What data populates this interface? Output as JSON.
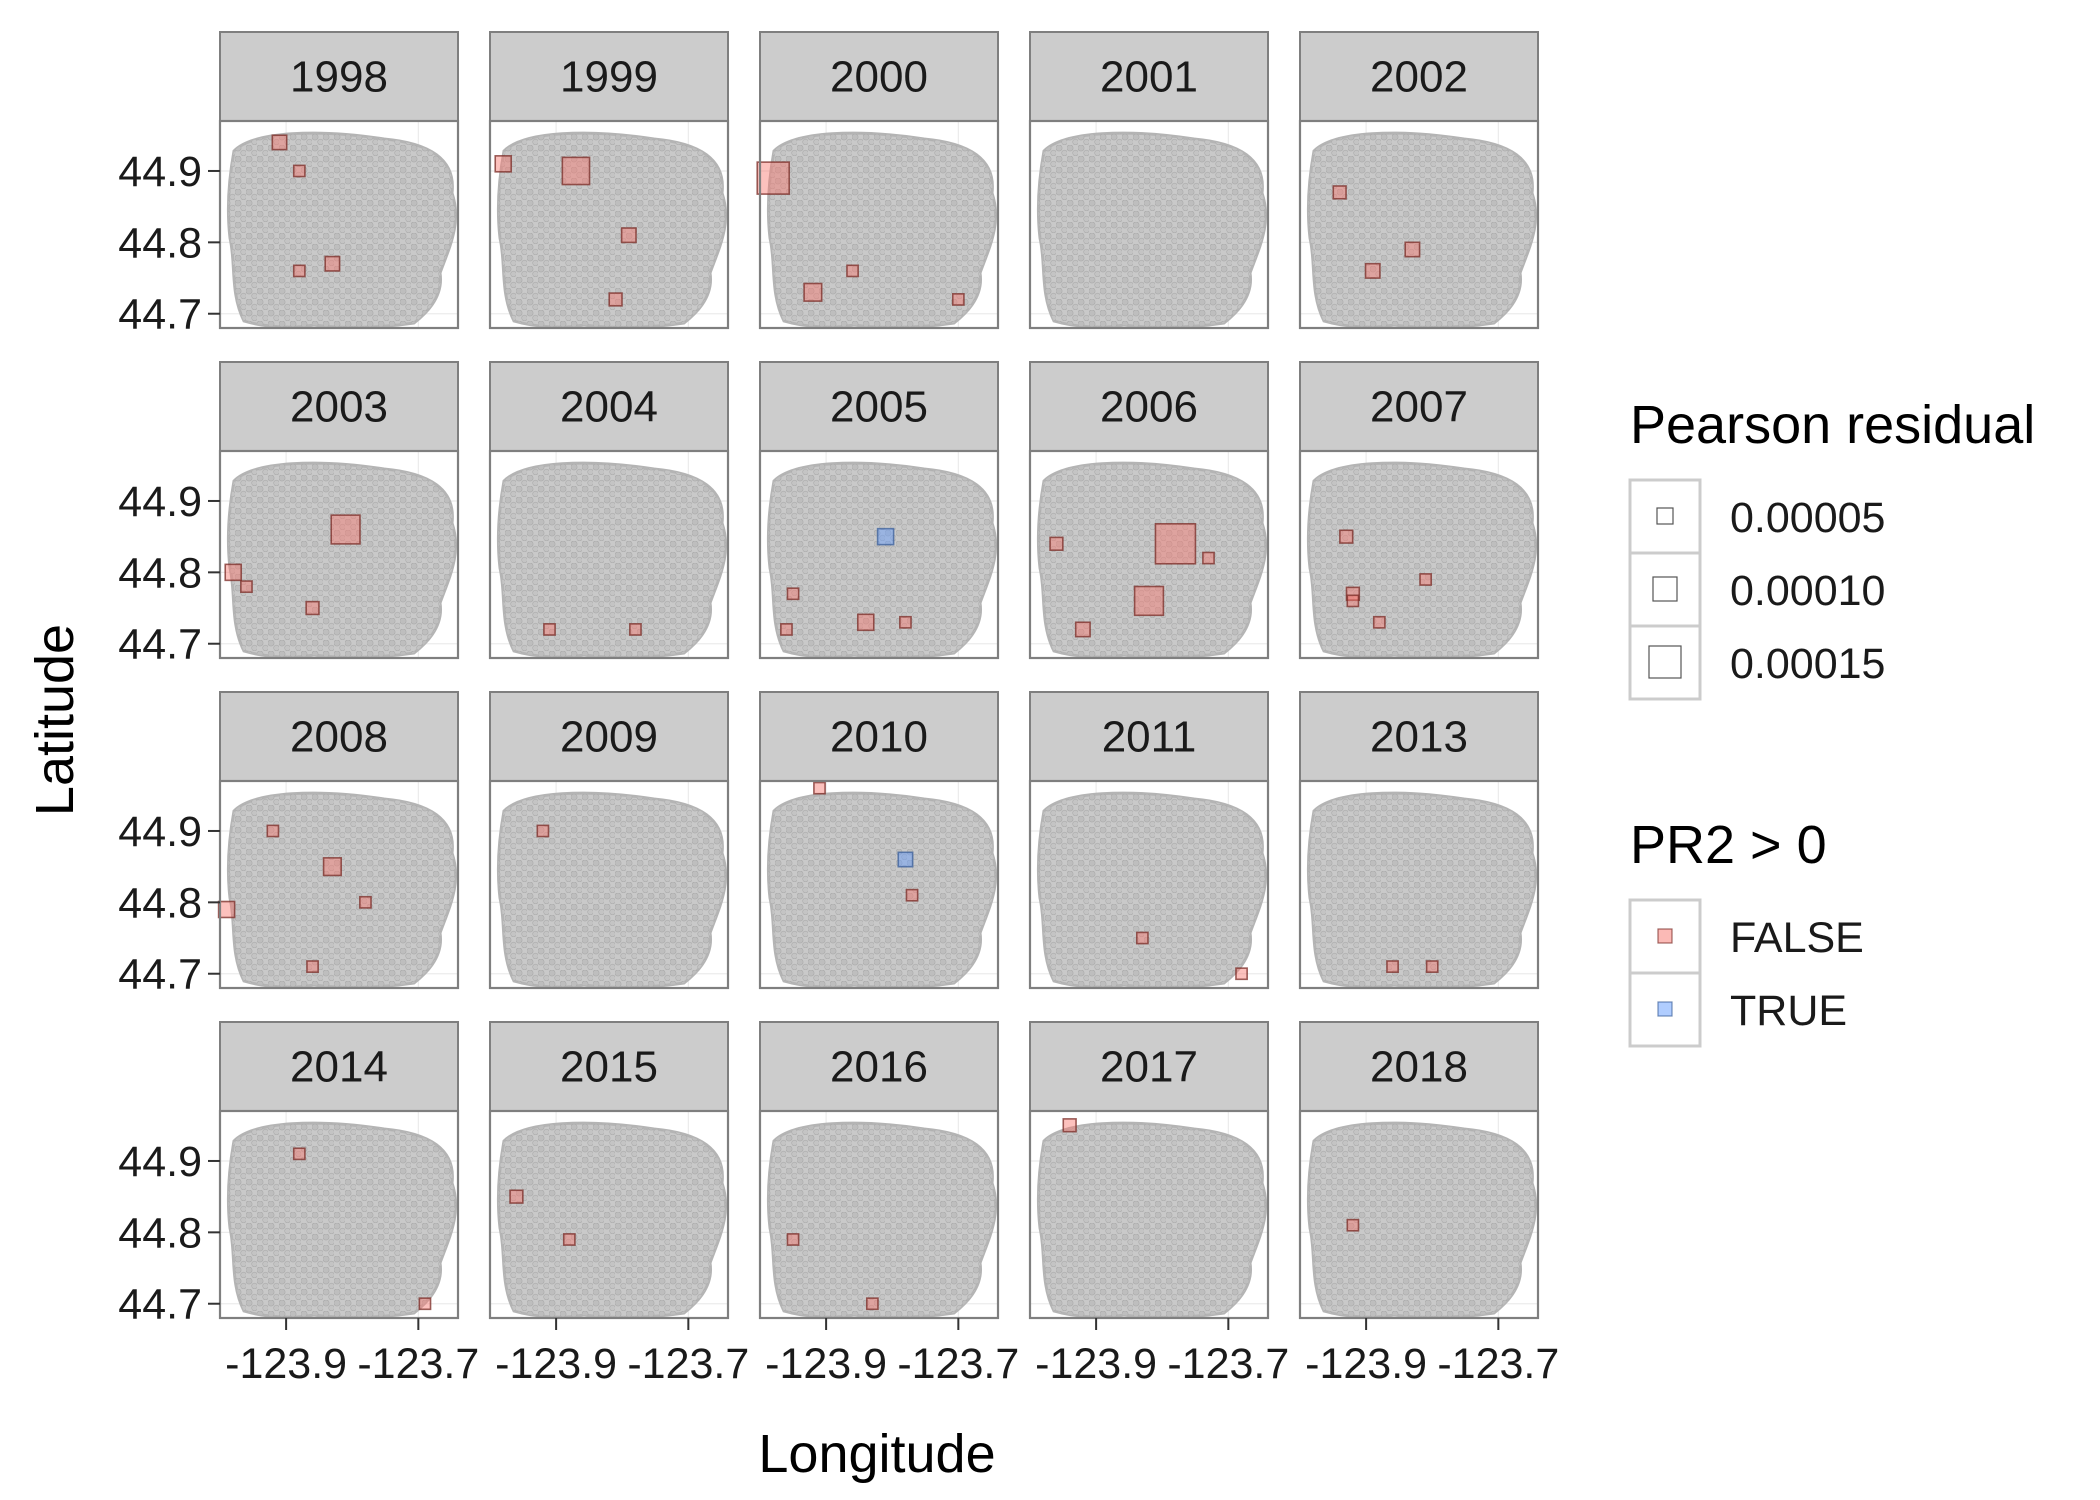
{
  "chart_data": {
    "type": "scatter",
    "layout": "faceted small multiples (4 rows x 5 columns)",
    "xlabel": "Longitude",
    "ylabel": "Latitude",
    "xlim": [
      -124.0,
      -123.64
    ],
    "ylim": [
      44.68,
      44.97
    ],
    "xticks": [
      -123.9,
      -123.7
    ],
    "xtick_labels": [
      "-123.9",
      "-123.7"
    ],
    "yticks": [
      44.9,
      44.8,
      44.7
    ],
    "ytick_labels": [
      "44.9",
      "44.8",
      "44.7"
    ],
    "grid": true,
    "background_points": "grey site locations repeated in every panel",
    "panels": [
      {
        "year": "1998",
        "points": [
          {
            "x": -123.91,
            "y": 44.94,
            "r": 4e-05,
            "pr2_pos": false
          },
          {
            "x": -123.83,
            "y": 44.77,
            "r": 4e-05,
            "pr2_pos": false
          },
          {
            "x": -123.88,
            "y": 44.76,
            "r": 2e-05,
            "pr2_pos": false
          },
          {
            "x": -123.88,
            "y": 44.9,
            "r": 2e-05,
            "pr2_pos": false
          }
        ]
      },
      {
        "year": "1999",
        "points": [
          {
            "x": -123.98,
            "y": 44.91,
            "r": 5e-05,
            "pr2_pos": false
          },
          {
            "x": -123.87,
            "y": 44.9,
            "r": 0.00012,
            "pr2_pos": false
          },
          {
            "x": -123.79,
            "y": 44.81,
            "r": 4e-05,
            "pr2_pos": false
          },
          {
            "x": -123.81,
            "y": 44.72,
            "r": 3e-05,
            "pr2_pos": false
          }
        ]
      },
      {
        "year": "2000",
        "points": [
          {
            "x": -123.98,
            "y": 44.89,
            "r": 0.00015,
            "pr2_pos": false
          },
          {
            "x": -123.92,
            "y": 44.73,
            "r": 6e-05,
            "pr2_pos": false
          },
          {
            "x": -123.86,
            "y": 44.76,
            "r": 2e-05,
            "pr2_pos": false
          },
          {
            "x": -123.7,
            "y": 44.72,
            "r": 2e-05,
            "pr2_pos": false
          }
        ]
      },
      {
        "year": "2001",
        "points": []
      },
      {
        "year": "2002",
        "points": [
          {
            "x": -123.94,
            "y": 44.87,
            "r": 3e-05,
            "pr2_pos": false
          },
          {
            "x": -123.89,
            "y": 44.76,
            "r": 4e-05,
            "pr2_pos": false
          },
          {
            "x": -123.83,
            "y": 44.79,
            "r": 4e-05,
            "pr2_pos": false
          }
        ]
      },
      {
        "year": "2003",
        "points": [
          {
            "x": -123.98,
            "y": 44.8,
            "r": 5e-05,
            "pr2_pos": false
          },
          {
            "x": -123.81,
            "y": 44.86,
            "r": 0.00013,
            "pr2_pos": false
          },
          {
            "x": -123.86,
            "y": 44.75,
            "r": 3e-05,
            "pr2_pos": false
          },
          {
            "x": -123.96,
            "y": 44.78,
            "r": 2e-05,
            "pr2_pos": false
          }
        ]
      },
      {
        "year": "2004",
        "points": [
          {
            "x": -123.91,
            "y": 44.72,
            "r": 2e-05,
            "pr2_pos": false
          },
          {
            "x": -123.78,
            "y": 44.72,
            "r": 2e-05,
            "pr2_pos": false
          }
        ]
      },
      {
        "year": "2005",
        "points": [
          {
            "x": -123.81,
            "y": 44.85,
            "r": 5e-05,
            "pr2_pos": true
          },
          {
            "x": -123.84,
            "y": 44.73,
            "r": 5e-05,
            "pr2_pos": false
          },
          {
            "x": -123.95,
            "y": 44.77,
            "r": 2e-05,
            "pr2_pos": false
          },
          {
            "x": -123.78,
            "y": 44.73,
            "r": 2e-05,
            "pr2_pos": false
          },
          {
            "x": -123.96,
            "y": 44.72,
            "r": 2e-05,
            "pr2_pos": false
          }
        ]
      },
      {
        "year": "2006",
        "points": [
          {
            "x": -123.78,
            "y": 44.84,
            "r": 0.0002,
            "pr2_pos": false
          },
          {
            "x": -123.82,
            "y": 44.76,
            "r": 0.00013,
            "pr2_pos": false
          },
          {
            "x": -123.92,
            "y": 44.72,
            "r": 4e-05,
            "pr2_pos": false
          },
          {
            "x": -123.96,
            "y": 44.84,
            "r": 3e-05,
            "pr2_pos": false
          },
          {
            "x": -123.73,
            "y": 44.82,
            "r": 2e-05,
            "pr2_pos": false
          }
        ]
      },
      {
        "year": "2007",
        "points": [
          {
            "x": -123.93,
            "y": 44.85,
            "r": 3e-05,
            "pr2_pos": false
          },
          {
            "x": -123.92,
            "y": 44.77,
            "r": 3e-05,
            "pr2_pos": false
          },
          {
            "x": -123.92,
            "y": 44.76,
            "r": 2e-05,
            "pr2_pos": false
          },
          {
            "x": -123.88,
            "y": 44.73,
            "r": 2e-05,
            "pr2_pos": false
          },
          {
            "x": -123.81,
            "y": 44.79,
            "r": 2e-05,
            "pr2_pos": false
          }
        ]
      },
      {
        "year": "2008",
        "points": [
          {
            "x": -123.99,
            "y": 44.79,
            "r": 5e-05,
            "pr2_pos": false
          },
          {
            "x": -123.83,
            "y": 44.85,
            "r": 6e-05,
            "pr2_pos": false
          },
          {
            "x": -123.92,
            "y": 44.9,
            "r": 2e-05,
            "pr2_pos": false
          },
          {
            "x": -123.78,
            "y": 44.8,
            "r": 2e-05,
            "pr2_pos": false
          },
          {
            "x": -123.86,
            "y": 44.71,
            "r": 2e-05,
            "pr2_pos": false
          }
        ]
      },
      {
        "year": "2009",
        "points": [
          {
            "x": -123.92,
            "y": 44.9,
            "r": 2e-05,
            "pr2_pos": false
          }
        ]
      },
      {
        "year": "2010",
        "points": [
          {
            "x": -123.91,
            "y": 44.96,
            "r": 2e-05,
            "pr2_pos": false
          },
          {
            "x": -123.78,
            "y": 44.86,
            "r": 4e-05,
            "pr2_pos": true
          },
          {
            "x": -123.77,
            "y": 44.81,
            "r": 2e-05,
            "pr2_pos": false
          }
        ]
      },
      {
        "year": "2011",
        "points": [
          {
            "x": -123.83,
            "y": 44.75,
            "r": 2e-05,
            "pr2_pos": false
          },
          {
            "x": -123.68,
            "y": 44.7,
            "r": 2e-05,
            "pr2_pos": false
          }
        ]
      },
      {
        "year": "2013",
        "points": [
          {
            "x": -123.86,
            "y": 44.71,
            "r": 2e-05,
            "pr2_pos": false
          },
          {
            "x": -123.8,
            "y": 44.71,
            "r": 2e-05,
            "pr2_pos": false
          }
        ]
      },
      {
        "year": "2014",
        "points": [
          {
            "x": -123.88,
            "y": 44.91,
            "r": 2e-05,
            "pr2_pos": false
          },
          {
            "x": -123.69,
            "y": 44.7,
            "r": 2e-05,
            "pr2_pos": false
          }
        ]
      },
      {
        "year": "2015",
        "points": [
          {
            "x": -123.96,
            "y": 44.85,
            "r": 3e-05,
            "pr2_pos": false
          },
          {
            "x": -123.88,
            "y": 44.79,
            "r": 2e-05,
            "pr2_pos": false
          }
        ]
      },
      {
        "year": "2016",
        "points": [
          {
            "x": -123.95,
            "y": 44.79,
            "r": 2e-05,
            "pr2_pos": false
          },
          {
            "x": -123.83,
            "y": 44.7,
            "r": 2e-05,
            "pr2_pos": false
          }
        ]
      },
      {
        "year": "2017",
        "points": [
          {
            "x": -123.94,
            "y": 44.95,
            "r": 3e-05,
            "pr2_pos": false
          }
        ]
      },
      {
        "year": "2018",
        "points": [
          {
            "x": -123.92,
            "y": 44.81,
            "r": 2e-05,
            "pr2_pos": false
          }
        ]
      }
    ],
    "legends": [
      {
        "title": "Pearson residual",
        "kind": "size",
        "entries": [
          "0.00005",
          "0.00010",
          "0.00015"
        ],
        "values": [
          5e-05,
          0.0001,
          0.00015
        ]
      },
      {
        "title": "PR2 > 0",
        "kind": "color",
        "entries": [
          "FALSE",
          "TRUE"
        ],
        "colors": [
          "#F8766D",
          "#619CFF"
        ]
      }
    ],
    "legend_position": "right",
    "colors": {
      "false": "#F8766D",
      "true": "#619CFF",
      "background_points": "#BEBEBE",
      "strip": "#CCCCCC",
      "panel_border": "#7F7F7F",
      "grid": "#EBEBEB"
    }
  }
}
